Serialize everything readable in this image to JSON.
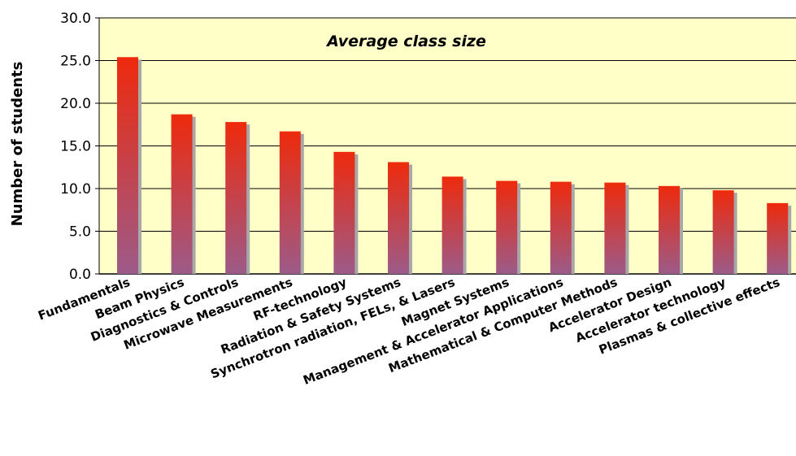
{
  "chart_data": {
    "type": "bar",
    "title": "Average class size",
    "ylabel": "Number of students",
    "xlabel": "",
    "ylim": [
      0,
      30
    ],
    "yticks": [
      "0.0",
      "5.0",
      "10.0",
      "15.0",
      "20.0",
      "25.0",
      "30.0"
    ],
    "grid": true,
    "categories": [
      "Fundamentals",
      "Beam Physics",
      "Diagnostics & Controls",
      "Microwave Measurements",
      "RF-technology",
      "Radiation & Safety Systems",
      "Synchrotron radiation, FELs, & Lasers",
      "Magnet Systems",
      "Management & Accelerator Applications",
      "Mathematical & Computer Methods",
      "Accelerator Design",
      "Accelerator technology",
      "Plasmas & collective effects"
    ],
    "values": [
      25.4,
      18.7,
      17.8,
      16.7,
      14.3,
      13.1,
      11.4,
      10.9,
      10.8,
      10.7,
      10.3,
      9.8,
      8.3
    ]
  },
  "colors": {
    "plot_background": "#ffffc8",
    "bar_top": "#ee2a0c",
    "bar_bottom": "#9c5b89",
    "bar_shadow": "#a8a8a8",
    "gridline": "#000000"
  }
}
